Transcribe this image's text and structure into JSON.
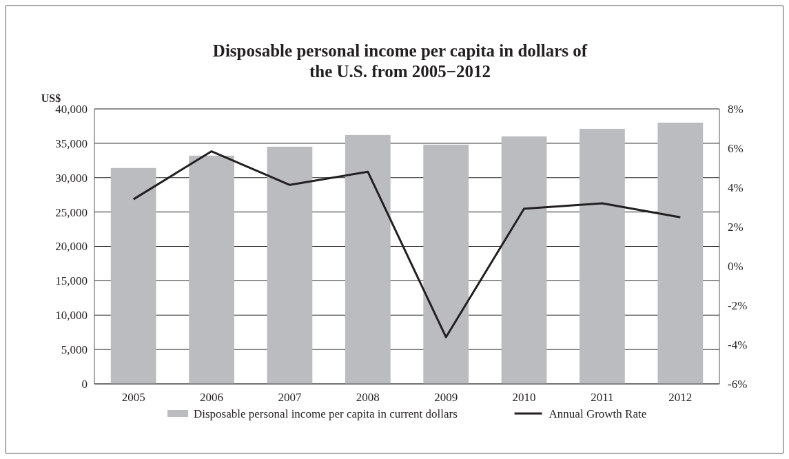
{
  "chart_data": {
    "type": "bar",
    "title": "Disposable personal income per capita in dollars of the U.S. from 2005−2012",
    "ylabel": "US$",
    "categories": [
      "2005",
      "2006",
      "2007",
      "2008",
      "2009",
      "2010",
      "2011",
      "2012"
    ],
    "series": [
      {
        "name": "Disposable personal income per capita in current dollars",
        "color": "#bbbcc0",
        "values": [
          31400,
          33200,
          34500,
          36200,
          34800,
          36000,
          37100,
          38000
        ]
      },
      {
        "name": "Annual Growth Rate",
        "type": "line",
        "axis": "y2",
        "color": "#231f20",
        "values": [
          3.4,
          5.84,
          4.13,
          4.8,
          -3.62,
          2.92,
          3.19,
          2.48
        ]
      }
    ],
    "ylim": [
      0,
      40000
    ],
    "yticks": [
      {
        "value": 0,
        "label": "0"
      },
      {
        "value": 5000,
        "label": "5,000"
      },
      {
        "value": 10000,
        "label": "10,000"
      },
      {
        "value": 15000,
        "label": "15,000"
      },
      {
        "value": 20000,
        "label": "20,000"
      },
      {
        "value": 25000,
        "label": "25,000"
      },
      {
        "value": 30000,
        "label": "30,000"
      },
      {
        "value": 35000,
        "label": "35,000"
      },
      {
        "value": 40000,
        "label": "40,000"
      }
    ],
    "y2lim": [
      -6,
      8
    ],
    "y2ticks": [
      {
        "value": -6,
        "label": "-6%"
      },
      {
        "value": -4,
        "label": "-4%"
      },
      {
        "value": -2,
        "label": "-2%"
      },
      {
        "value": 0,
        "label": "0%"
      },
      {
        "value": 2,
        "label": "2%"
      },
      {
        "value": 4,
        "label": "4%"
      },
      {
        "value": 6,
        "label": "6%"
      },
      {
        "value": 8,
        "label": "8%"
      }
    ],
    "grid": "y",
    "legend": "bottom",
    "marker": "none",
    "line_style": "solid"
  }
}
